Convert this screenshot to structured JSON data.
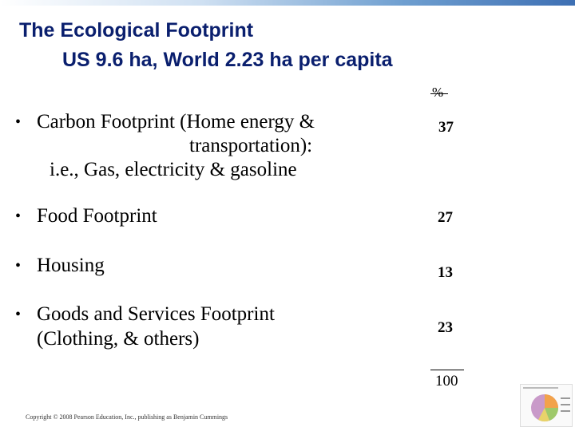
{
  "title": {
    "line1": "The Ecological Footprint",
    "line2": "US 9.6 ha,  World  2.23 ha per capita"
  },
  "column_header": "%",
  "items": [
    {
      "lines": [
        "Carbon Footprint (Home energy &",
        "transportation):",
        "i.e., Gas, electricity & gasoline"
      ],
      "value": "37"
    },
    {
      "lines": [
        "Food Footprint"
      ],
      "value": "27"
    },
    {
      "lines": [
        "Housing"
      ],
      "value": "13"
    },
    {
      "lines": [
        "Goods and Services Footprint",
        "(Clothing,  & others)"
      ],
      "value": "23"
    }
  ],
  "total": "100",
  "copyright": "Copyright © 2008 Pearson Education, Inc., publishing as Benjamin Cummings"
}
